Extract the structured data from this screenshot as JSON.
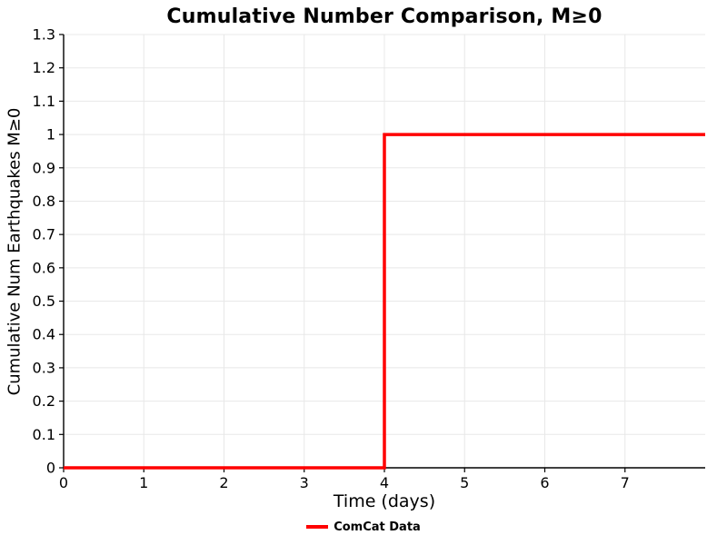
{
  "chart_data": {
    "type": "line",
    "title": "Cumulative Number Comparison, M≥0",
    "xlabel": "Time (days)",
    "ylabel": "Cumulative Num Earthquakes M≥0",
    "xlim": [
      0,
      8
    ],
    "ylim": [
      0,
      1.3
    ],
    "xticks": [
      0,
      1,
      2,
      3,
      4,
      5,
      6,
      7
    ],
    "yticks": [
      0,
      0.1,
      0.2,
      0.3,
      0.4,
      0.5,
      0.6,
      0.7,
      0.8,
      0.9,
      1.0,
      1.1,
      1.2,
      1.3
    ],
    "grid": true,
    "grid_color": "#e8e8e8",
    "axis_color": "#000000",
    "legend_position": "bottom-center",
    "series": [
      {
        "name": "ComCat Data",
        "color": "#ff0000",
        "step": true,
        "x": [
          0,
          4,
          4,
          8
        ],
        "y": [
          0,
          0,
          1,
          1
        ]
      }
    ]
  }
}
